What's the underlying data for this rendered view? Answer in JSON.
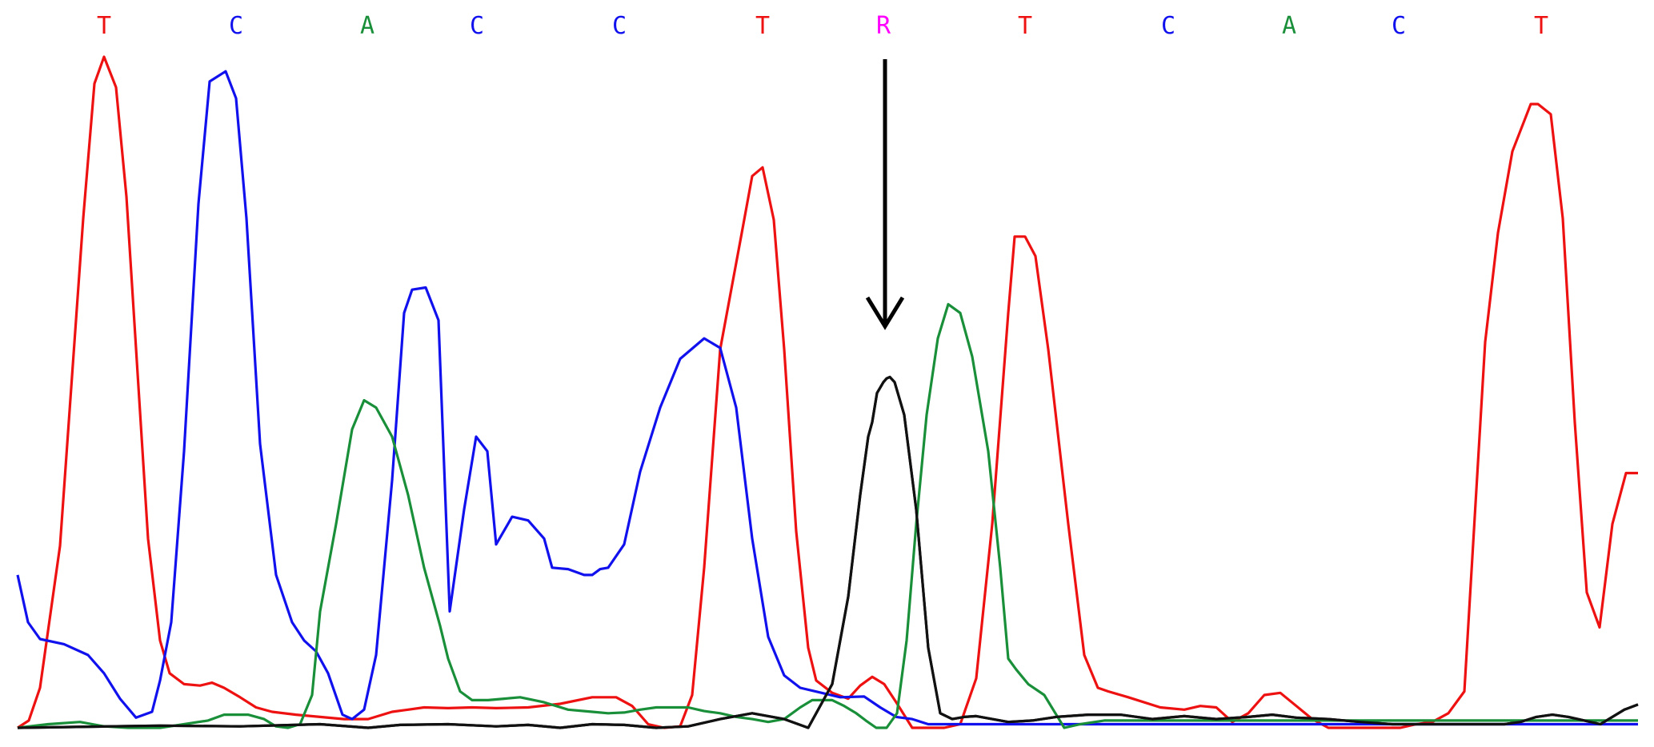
{
  "chart_data": {
    "type": "line",
    "title": "",
    "xlabel": "",
    "ylabel": "",
    "grid": false,
    "legend": "none",
    "xlim": [
      0,
      2067
    ],
    "ylim": [
      0,
      1000
    ],
    "base_calls": [
      "T",
      "C",
      "A",
      "C",
      "C",
      "T",
      "R",
      "T",
      "C",
      "A",
      "C",
      "T"
    ],
    "base_call_positions": [
      130,
      295,
      459,
      596,
      774,
      953,
      1104,
      1281,
      1460,
      1611,
      1748,
      1926
    ],
    "base_colors": {
      "A": "#1a8f3a",
      "C": "#1111ee",
      "G": "#111111",
      "T": "#ee1111",
      "R": "#ff00ff"
    },
    "marker": {
      "label": "arrow",
      "position": 1106
    },
    "series": [
      {
        "base": "T",
        "color": "#ee1111",
        "x": [
          22,
          36,
          50,
          75,
          104,
          118,
          130,
          145,
          158,
          185,
          200,
          212,
          230,
          250,
          265,
          280,
          300,
          320,
          340,
          370,
          400,
          430,
          460,
          490,
          510,
          530,
          560,
          590,
          620,
          660,
          700,
          740,
          770,
          790,
          810,
          830,
          850,
          865,
          880,
          900,
          927,
          940,
          953,
          967,
          980,
          995,
          1010,
          1020,
          1040,
          1060,
          1075,
          1090,
          1105,
          1120,
          1140,
          1160,
          1180,
          1200,
          1220,
          1240,
          1260,
          1268,
          1281,
          1294,
          1310,
          1335,
          1355,
          1372,
          1385,
          1410,
          1450,
          1480,
          1500,
          1520,
          1540,
          1560,
          1580,
          1600,
          1620,
          1640,
          1660,
          1700,
          1730,
          1750,
          1770,
          1790,
          1810,
          1830,
          1856,
          1872,
          1890,
          1913,
          1922,
          1938,
          1953,
          1968,
          1983,
          1999,
          2015,
          2032,
          2047
        ],
        "y": [
          0,
          10,
          55,
          250,
          700,
          885,
          922,
          880,
          730,
          260,
          120,
          75,
          60,
          58,
          62,
          55,
          42,
          28,
          22,
          18,
          15,
          12,
          12,
          22,
          25,
          28,
          27,
          28,
          27,
          28,
          33,
          42,
          42,
          30,
          5,
          0,
          2,
          45,
          220,
          520,
          680,
          758,
          770,
          698,
          520,
          270,
          110,
          65,
          48,
          40,
          58,
          70,
          60,
          35,
          0,
          0,
          0,
          5,
          68,
          280,
          570,
          675,
          675,
          648,
          520,
          280,
          100,
          55,
          50,
          42,
          28,
          25,
          30,
          28,
          8,
          20,
          45,
          48,
          30,
          12,
          0,
          0,
          0,
          0,
          5,
          8,
          20,
          50,
          530,
          680,
          792,
          857,
          857,
          843,
          700,
          420,
          186,
          138,
          280,
          350,
          350
        ]
      },
      {
        "base": "C",
        "color": "#1111ee",
        "x": [
          22,
          35,
          50,
          80,
          110,
          130,
          150,
          170,
          190,
          200,
          214,
          230,
          248,
          262,
          282,
          295,
          308,
          325,
          345,
          365,
          380,
          395,
          410,
          428,
          440,
          455,
          470,
          490,
          505,
          515,
          532,
          548,
          562,
          580,
          595,
          609,
          620,
          640,
          660,
          680,
          690,
          710,
          730,
          740,
          750,
          760,
          780,
          800,
          825,
          850,
          880,
          900,
          920,
          940,
          960,
          980,
          1000,
          1050,
          1080,
          1100,
          1120,
          1140,
          1160,
          1180,
          1200,
          1215,
          1240,
          1260,
          1270,
          1280,
          1300,
          1318,
          1330,
          1340,
          1345,
          1360,
          1380,
          1410,
          1430,
          1450,
          1470,
          1490,
          1510,
          1530,
          1550,
          1565,
          1585,
          1605,
          1630,
          1650,
          1670,
          1680,
          1700,
          1725,
          1737,
          1750,
          1765,
          1785,
          1810,
          1840,
          1870,
          1890,
          1910,
          1930,
          1960,
          1990,
          2010,
          2030,
          2047
        ],
        "y": [
          210,
          145,
          122,
          115,
          100,
          75,
          40,
          14,
          22,
          65,
          145,
          380,
          720,
          888,
          902,
          865,
          700,
          390,
          210,
          145,
          120,
          105,
          75,
          18,
          12,
          25,
          100,
          340,
          570,
          602,
          605,
          560,
          160,
          300,
          400,
          380,
          252,
          290,
          285,
          260,
          220,
          218,
          210,
          210,
          218,
          220,
          252,
          352,
          440,
          507,
          535,
          522,
          440,
          260,
          125,
          72,
          55,
          42,
          43,
          28,
          15,
          12,
          5,
          5,
          5,
          5,
          5,
          5,
          5,
          5,
          5,
          5,
          5,
          5,
          5,
          5,
          5,
          5,
          5,
          5,
          5,
          5,
          5,
          5,
          5,
          5,
          5,
          5,
          5,
          5,
          5,
          5,
          5,
          5,
          5,
          5,
          5,
          5,
          5,
          5,
          5,
          5,
          5,
          5,
          5,
          5,
          5,
          5,
          5
        ]
      },
      {
        "base": "A",
        "color": "#1a8f3a",
        "x": [
          22,
          60,
          100,
          130,
          160,
          200,
          230,
          260,
          280,
          310,
          330,
          345,
          360,
          375,
          390,
          400,
          420,
          440,
          455,
          470,
          490,
          510,
          530,
          550,
          560,
          575,
          590,
          610,
          630,
          650,
          680,
          710,
          740,
          760,
          780,
          800,
          820,
          840,
          860,
          880,
          900,
          920,
          940,
          960,
          980,
          1000,
          1015,
          1040,
          1055,
          1070,
          1082,
          1095,
          1108,
          1121,
          1133,
          1145,
          1158,
          1172,
          1185,
          1200,
          1215,
          1235,
          1250,
          1260,
          1270,
          1285,
          1305,
          1330,
          1350,
          1380,
          1410,
          1440,
          1470,
          1500,
          1520,
          1540,
          1560,
          1580,
          1600,
          1615,
          1625,
          1635,
          1655,
          1675,
          1700,
          1720,
          1740,
          1760,
          1780,
          1820,
          1860,
          1900,
          1950,
          2000,
          2047
        ],
        "y": [
          0,
          5,
          8,
          2,
          0,
          0,
          5,
          10,
          18,
          18,
          12,
          2,
          0,
          5,
          45,
          160,
          280,
          410,
          450,
          440,
          400,
          320,
          220,
          140,
          95,
          50,
          38,
          38,
          40,
          42,
          35,
          25,
          22,
          20,
          21,
          25,
          28,
          28,
          28,
          23,
          20,
          15,
          12,
          8,
          12,
          28,
          38,
          38,
          30,
          20,
          10,
          0,
          0,
          20,
          120,
          280,
          430,
          535,
          582,
          570,
          510,
          380,
          220,
          95,
          80,
          60,
          45,
          0,
          5,
          10,
          10,
          10,
          10,
          10,
          10,
          10,
          10,
          10,
          10,
          10,
          10,
          10,
          10,
          10,
          10,
          10,
          10,
          10,
          10,
          10,
          10,
          10,
          10,
          10,
          10
        ]
      },
      {
        "base": "G",
        "color": "#111111",
        "x": [
          22,
          200,
          300,
          400,
          460,
          500,
          560,
          620,
          660,
          700,
          740,
          780,
          820,
          860,
          900,
          940,
          980,
          1000,
          1010,
          1020,
          1040,
          1060,
          1075,
          1085,
          1090,
          1096,
          1104,
          1108,
          1112,
          1118,
          1130,
          1145,
          1160,
          1175,
          1190,
          1205,
          1220,
          1240,
          1260,
          1290,
          1320,
          1360,
          1400,
          1440,
          1480,
          1520,
          1560,
          1590,
          1620,
          1660,
          1700,
          1740,
          1780,
          1820,
          1860,
          1880,
          1900,
          1920,
          1940,
          1960,
          1980,
          2000,
          2015,
          2030,
          2047
        ],
        "y": [
          0,
          3,
          2,
          5,
          0,
          4,
          5,
          2,
          4,
          0,
          5,
          4,
          0,
          2,
          12,
          20,
          12,
          4,
          0,
          20,
          60,
          180,
          320,
          400,
          420,
          460,
          475,
          480,
          482,
          475,
          430,
          300,
          110,
          20,
          12,
          15,
          16,
          12,
          8,
          10,
          15,
          18,
          18,
          12,
          16,
          12,
          15,
          18,
          14,
          12,
          8,
          5,
          5,
          5,
          5,
          5,
          8,
          15,
          18,
          15,
          10,
          5,
          15,
          25,
          32
        ]
      }
    ]
  }
}
